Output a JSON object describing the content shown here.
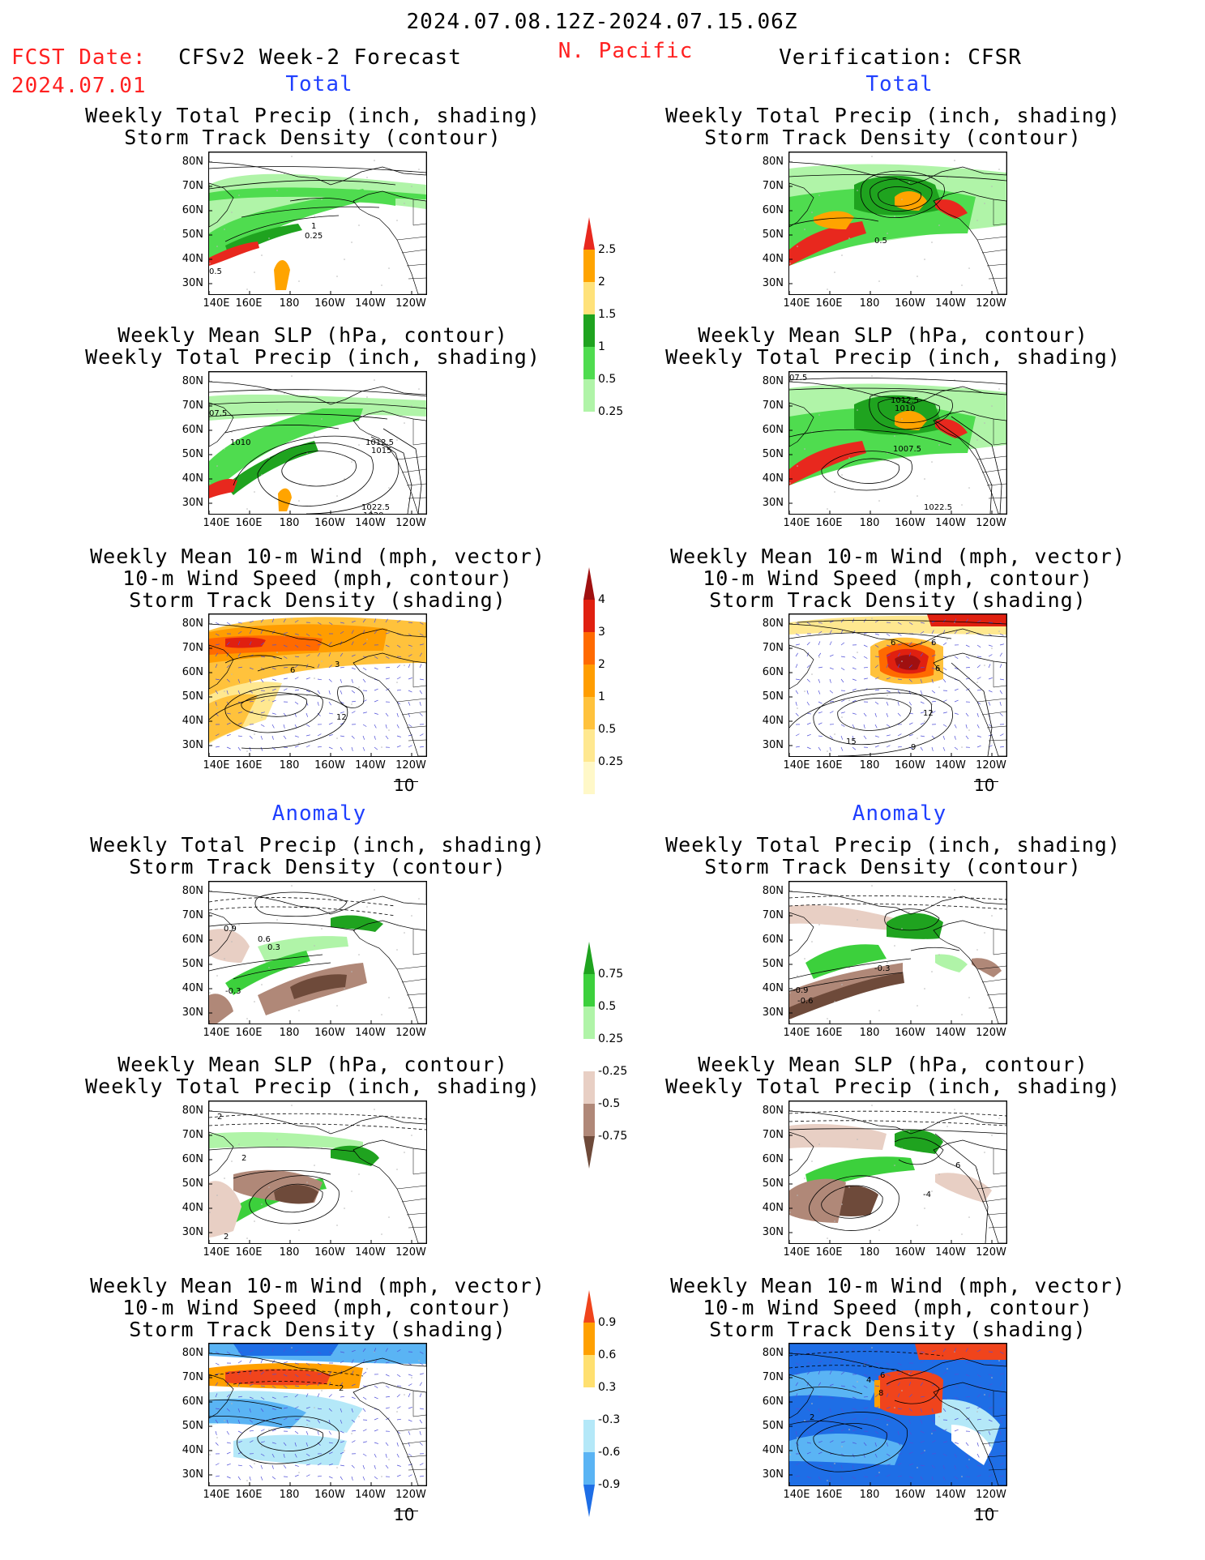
{
  "header": {
    "period": "2024.07.08.12Z-2024.07.15.06Z",
    "fcst_label": "FCST Date:",
    "fcst_date": "2024.07.01",
    "forecast_title": "CFSv2 Week-2 Forecast",
    "region": "N. Pacific",
    "verification_title": "Verification: CFSR"
  },
  "section_labels": {
    "total": "Total",
    "anomaly": "Anomaly"
  },
  "panel_titles": {
    "precip_storm": [
      "Weekly Total Precip (inch, shading)",
      "Storm Track Density (contour)"
    ],
    "slp_precip": [
      "Weekly Mean SLP (hPa, contour)",
      "Weekly Total Precip (inch, shading)"
    ],
    "wind_storm": [
      "Weekly Mean 10-m Wind (mph, vector)",
      "10-m Wind Speed (mph, contour)",
      "Storm Track Density (shading)"
    ]
  },
  "axes": {
    "lat_ticks": [
      "80N",
      "70N",
      "60N",
      "50N",
      "40N",
      "30N"
    ],
    "lon_ticks": [
      "140E",
      "160E",
      "180",
      "160W",
      "140W",
      "120W"
    ]
  },
  "vector_ref": "10",
  "colorbars": {
    "precip_total": {
      "labels": [
        "2.5",
        "2",
        "1.5",
        "1",
        "0.5",
        "0.25"
      ],
      "colors": [
        "#e8281e",
        "#ffa400",
        "#ffe27a",
        "#1fa31f",
        "#4fdc4f",
        "#b0f4a8"
      ]
    },
    "storm_total": {
      "labels": [
        "4",
        "3",
        "2",
        "1",
        "0.5",
        "0.25"
      ],
      "colors": [
        "#a01010",
        "#e02010",
        "#ff6a00",
        "#ff9d00",
        "#ffc23c",
        "#ffe890",
        "#fff8c8"
      ]
    },
    "precip_anom": {
      "labels": [
        "0.75",
        "0.5",
        "0.25",
        "-0.25",
        "-0.5",
        "-0.75"
      ],
      "colors": [
        "#1fa31f",
        "#3cd03c",
        "#b0f4a8",
        "#ffffff",
        "#e8cfc4",
        "#b08878",
        "#6e4a3a"
      ]
    },
    "storm_anom": {
      "labels": [
        "0.9",
        "0.6",
        "0.3",
        "-0.3",
        "-0.6",
        "-0.9"
      ],
      "colors": [
        "#f0441c",
        "#ffa000",
        "#ffe070",
        "#ffffff",
        "#b4e8f8",
        "#5ab4f4",
        "#1e6ee6"
      ]
    }
  },
  "panels": {
    "fc_total_precip": {
      "contour_labels": [
        "1",
        "0.25",
        "0.5"
      ]
    },
    "fc_total_slp": {
      "contour_labels": [
        "07.5",
        "1010",
        "1012.5",
        "1015",
        "1022.5",
        "1020"
      ]
    },
    "fc_total_wind": {
      "contour_labels": [
        "6",
        "3",
        "12"
      ]
    },
    "fc_anom_precip": {
      "contour_labels": [
        "0.9",
        "0.6",
        "0.3",
        "-0.3"
      ]
    },
    "fc_anom_slp": {
      "contour_labels": [
        "2",
        "2",
        "2"
      ]
    },
    "fc_anom_wind": {
      "contour_labels": [
        "2"
      ]
    },
    "vr_total_precip": {
      "contour_labels": [
        "0.5"
      ]
    },
    "vr_total_slp": {
      "contour_labels": [
        "07.5",
        "1012.5",
        "1010",
        "1007.5",
        "1022.5"
      ]
    },
    "vr_total_wind": {
      "contour_labels": [
        "6",
        "6",
        "6",
        "12",
        "15",
        "9"
      ]
    },
    "vr_anom_precip": {
      "contour_labels": [
        "-0.3",
        "-0.9",
        "-0.6"
      ]
    },
    "vr_anom_slp": {
      "contour_labels": [
        "-4",
        "6"
      ]
    },
    "vr_anom_wind": {
      "contour_labels": [
        "4",
        "6",
        "8",
        "2"
      ]
    }
  }
}
